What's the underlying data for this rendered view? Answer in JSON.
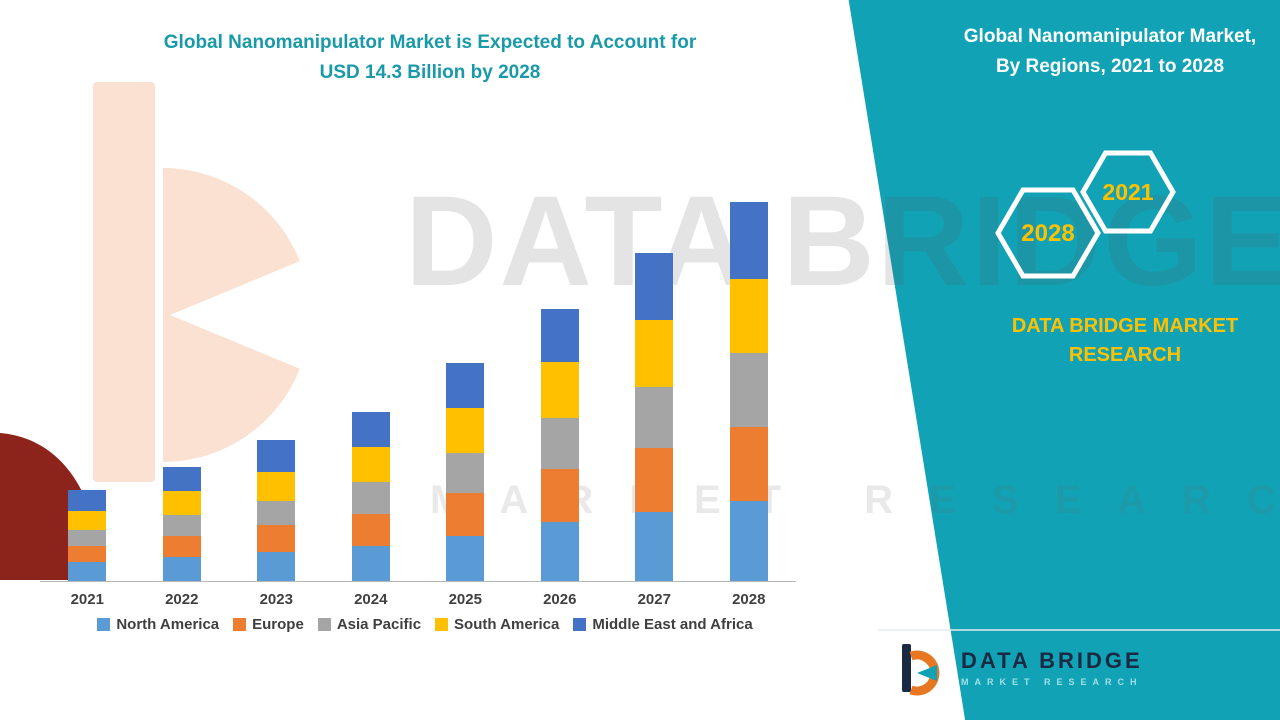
{
  "header": {
    "title_line1": "Global Nanomanipulator Market is Expected to Account for",
    "title_line2": "USD 14.3 Billion by 2028"
  },
  "banner": {
    "line1": "Global Nanomanipulator Market,",
    "line2": "By Regions, 2021 to 2028",
    "badge_2028": "2028",
    "badge_2021": "2021",
    "teal_color": "#11a3b5",
    "accent_yellow": "#ffc000"
  },
  "brand": {
    "line1": "DATA BRIDGE MARKET",
    "line2": "RESEARCH"
  },
  "watermark": {
    "line1": "DATA BRIDGE",
    "line2": "MARKET RESEARCH"
  },
  "footer": {
    "brand": "DATA BRIDGE",
    "subtitle": "MARKET RESEARCH"
  },
  "chart_data": {
    "type": "bar",
    "stacked": true,
    "title": "Global Nanomanipulator Market is Expected to Account for USD 14.3 Billion by 2028",
    "unit": "USD Billion",
    "categories": [
      "2021",
      "2022",
      "2023",
      "2024",
      "2025",
      "2026",
      "2027",
      "2028"
    ],
    "series": [
      {
        "name": "North America",
        "color": "#5b9bd5",
        "values": [
          0.7,
          0.9,
          1.1,
          1.3,
          1.7,
          2.2,
          2.6,
          3.0
        ]
      },
      {
        "name": "Europe",
        "color": "#ed7d31",
        "values": [
          0.6,
          0.8,
          1.0,
          1.2,
          1.6,
          2.0,
          2.4,
          2.8
        ]
      },
      {
        "name": "Asia Pacific",
        "color": "#a5a5a5",
        "values": [
          0.6,
          0.8,
          0.9,
          1.2,
          1.5,
          1.9,
          2.3,
          2.8
        ]
      },
      {
        "name": "South America",
        "color": "#ffc000",
        "values": [
          0.7,
          0.9,
          1.1,
          1.3,
          1.7,
          2.1,
          2.5,
          2.8
        ]
      },
      {
        "name": "Middle East and Africa",
        "color": "#4472c4",
        "values": [
          0.8,
          0.9,
          1.2,
          1.3,
          1.7,
          2.0,
          2.5,
          2.9
        ]
      }
    ],
    "totals": [
      3.4,
      4.3,
      5.3,
      6.3,
      8.2,
      10.2,
      12.3,
      14.3
    ],
    "xlabel": "",
    "ylabel": "",
    "ylim": [
      0,
      15
    ],
    "grid": false,
    "legend_position": "bottom"
  }
}
